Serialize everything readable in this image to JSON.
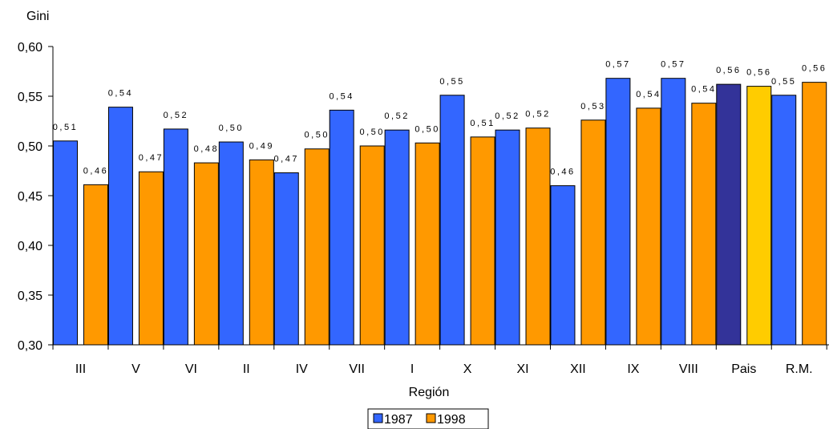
{
  "chart_data": {
    "type": "bar",
    "title": "",
    "ylabel": "Gini",
    "xlabel": "Región",
    "ylim": [
      0.3,
      0.6
    ],
    "yticks": [
      "0,30",
      "0,35",
      "0,40",
      "0,45",
      "0,50",
      "0,55",
      "0,60"
    ],
    "ytick_values": [
      0.3,
      0.35,
      0.4,
      0.45,
      0.5,
      0.55,
      0.6
    ],
    "grid": false,
    "legend_position": "bottom-center",
    "categories": [
      "III",
      "V",
      "VI",
      "II",
      "IV",
      "VII",
      "I",
      "X",
      "XI",
      "XII",
      "IX",
      "VIII",
      "Pais",
      "R.M."
    ],
    "series": [
      {
        "name": "1987",
        "color": "#3366FF",
        "highlight_color": "#333399",
        "values": [
          0.505,
          0.539,
          0.517,
          0.504,
          0.473,
          0.536,
          0.516,
          0.551,
          0.516,
          0.46,
          0.568,
          0.568,
          0.562,
          0.551
        ],
        "labels": [
          "0,51",
          "0,54",
          "0,52",
          "0,50",
          "0,47",
          "0,54",
          "0,52",
          "0,55",
          "0,52",
          "0,46",
          "0,57",
          "0,57",
          "0,56",
          "0,55"
        ]
      },
      {
        "name": "1998",
        "color": "#FF9900",
        "highlight_color": "#FFCC00",
        "values": [
          0.461,
          0.474,
          0.483,
          0.486,
          0.497,
          0.5,
          0.503,
          0.509,
          0.518,
          0.526,
          0.538,
          0.543,
          0.56,
          0.564
        ],
        "labels": [
          "0,46",
          "0,47",
          "0,48",
          "0,49",
          "0,50",
          "0,50",
          "0,50",
          "0,51",
          "0,52",
          "0,53",
          "0,54",
          "0,54",
          "0,56",
          "0,56"
        ]
      }
    ],
    "highlight_category": "Pais"
  }
}
